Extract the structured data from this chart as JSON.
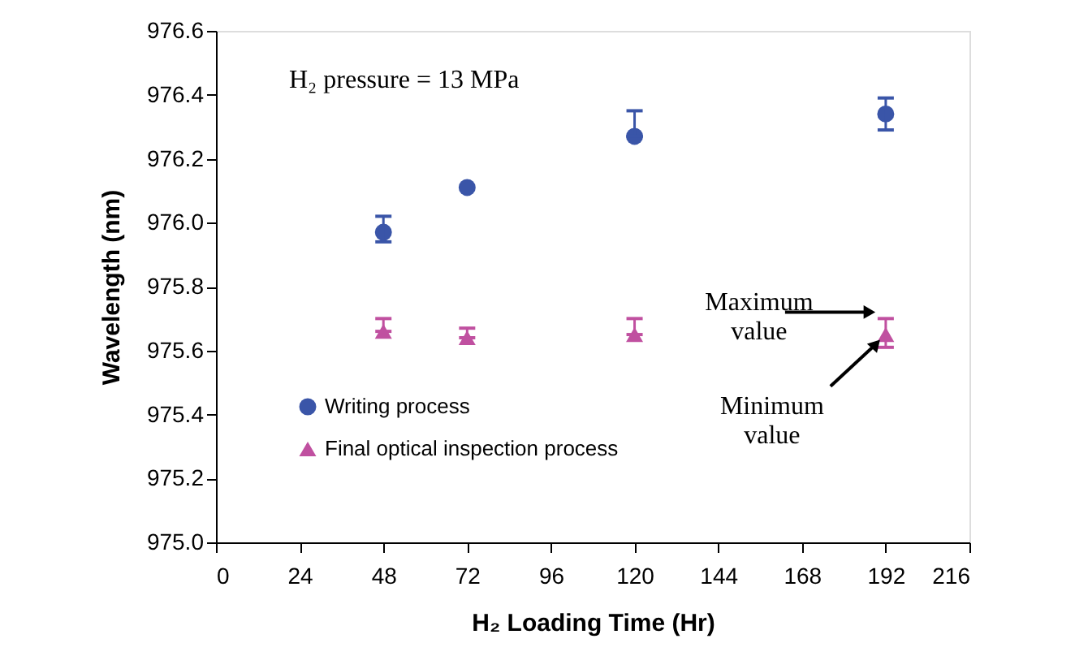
{
  "chart_data": {
    "type": "scatter",
    "xlabel": "H₂ Loading Time (Hr)",
    "ylabel": "Wavelength  (nm)",
    "x": [
      48,
      72,
      120,
      192
    ],
    "series": [
      {
        "name": "Writing process",
        "color": "#3a55a8",
        "marker": "circle",
        "values": [
          975.97,
          976.11,
          976.27,
          976.34
        ],
        "errors": [
          [
            975.94,
            976.02
          ],
          null,
          [
            976.27,
            976.35
          ],
          [
            976.29,
            976.39
          ]
        ]
      },
      {
        "name": "Final optical inspection process",
        "color": "#c050a0",
        "marker": "triangle",
        "values": [
          975.66,
          975.64,
          975.65,
          975.65
        ],
        "errors": [
          [
            975.66,
            975.7
          ],
          [
            975.64,
            975.67
          ],
          [
            975.65,
            975.7
          ],
          [
            975.61,
            975.7
          ]
        ]
      }
    ],
    "xlim": [
      0,
      216
    ],
    "xticks": [
      0,
      24,
      48,
      72,
      96,
      120,
      144,
      168,
      192,
      216
    ],
    "ylim": [
      975.0,
      976.6
    ],
    "yticks": [
      {
        "value": 975.0,
        "label": "975.0"
      },
      {
        "value": 975.2,
        "label": "975.2"
      },
      {
        "value": 975.4,
        "label": "975.4"
      },
      {
        "value": 975.6,
        "label": "975.6"
      },
      {
        "value": 975.8,
        "label": "975.8"
      },
      {
        "value": 976.0,
        "label": "976.0"
      },
      {
        "value": 976.2,
        "label": "976.2"
      },
      {
        "value": 976.4,
        "label": "976.4"
      },
      {
        "value": 976.6,
        "label": "976.6"
      }
    ],
    "grid": false,
    "legend": "bottom left",
    "annotations": [
      "H₂ pressure = 13 MPa",
      {
        "text": "Maximum value",
        "x": 192,
        "y": 975.7
      },
      {
        "text": "Minimum value",
        "x": 192,
        "y": 975.61
      }
    ]
  }
}
